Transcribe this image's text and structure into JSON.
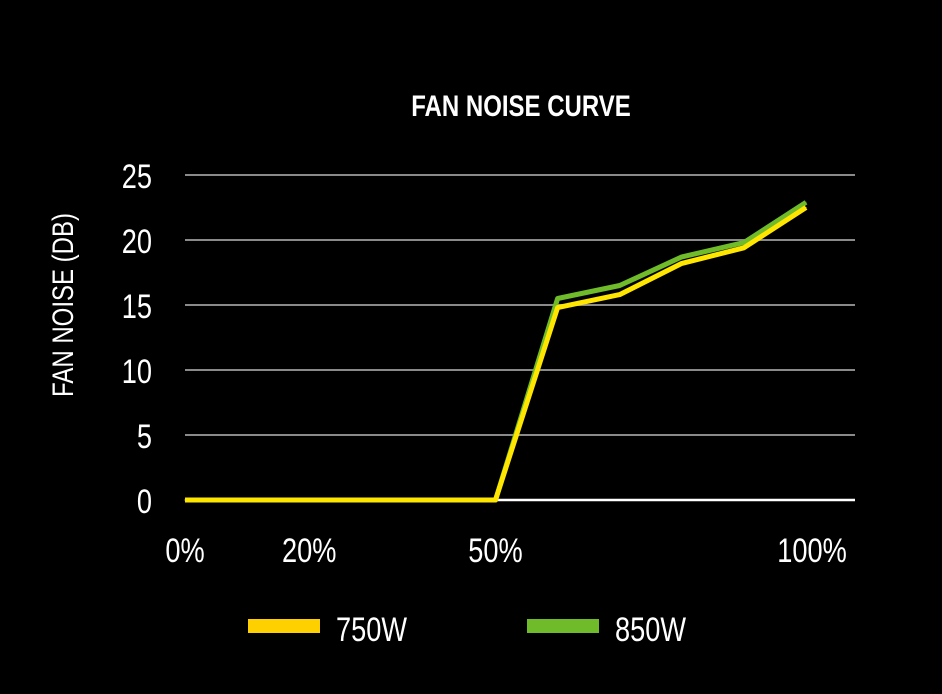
{
  "chart_data": {
    "type": "line",
    "title": "FAN NOISE CURVE",
    "xlabel": "",
    "ylabel": "FAN NOISE (DB)",
    "x": [
      0,
      10,
      20,
      30,
      40,
      50,
      60,
      70,
      80,
      90,
      100
    ],
    "xlim": [
      0,
      100
    ],
    "ylim": [
      0,
      25
    ],
    "xticks": [
      {
        "value": 0,
        "label": "0%"
      },
      {
        "value": 20,
        "label": "20%"
      },
      {
        "value": 50,
        "label": "50%"
      },
      {
        "value": 100,
        "label": "100%"
      }
    ],
    "yticks": [
      {
        "value": 0,
        "label": "0"
      },
      {
        "value": 5,
        "label": "5"
      },
      {
        "value": 10,
        "label": "10"
      },
      {
        "value": 15,
        "label": "15"
      },
      {
        "value": 20,
        "label": "20"
      },
      {
        "value": 25,
        "label": "25"
      }
    ],
    "grid": true,
    "legend_position": "bottom",
    "series": [
      {
        "name": "850W",
        "color": "#6fbb2a",
        "values": [
          0,
          0,
          0,
          0,
          0,
          0,
          15.5,
          16.5,
          18.7,
          19.8,
          22.9
        ]
      },
      {
        "name": "750W",
        "color": "#ffe600",
        "values": [
          0,
          0,
          0,
          0,
          0,
          0,
          14.8,
          15.8,
          18.2,
          19.4,
          22.5
        ]
      }
    ],
    "legend": [
      {
        "name": "750W",
        "color": "#ffd000"
      },
      {
        "name": "850W",
        "color": "#6fbb2a"
      }
    ]
  }
}
